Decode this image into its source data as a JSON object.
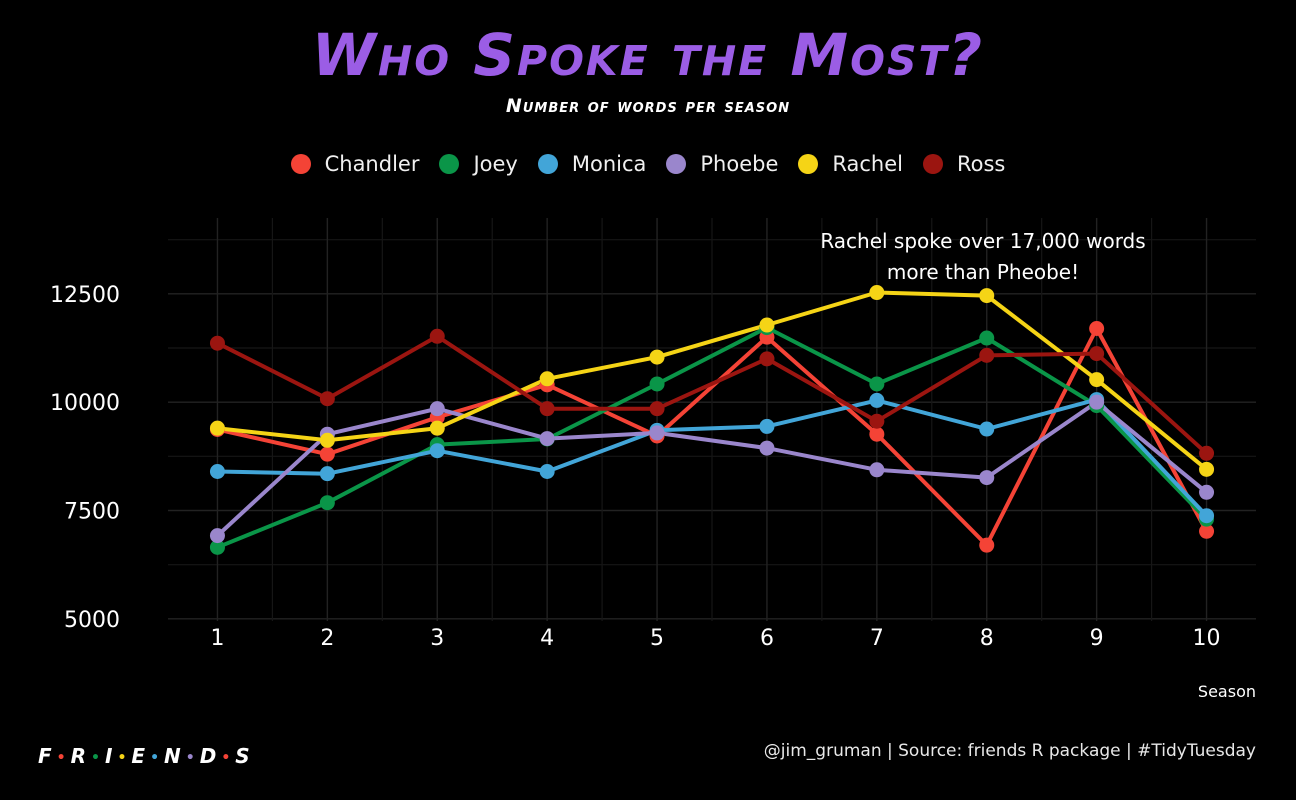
{
  "colors": {
    "background": "#000000",
    "grid": "#222222",
    "text": "#ffffff",
    "title": "#9b5de5"
  },
  "logo_text": [
    "F",
    "R",
    "I",
    "E",
    "N",
    "D",
    "S"
  ],
  "caption": "@jim_gruman | Source: friends R package | #TidyTuesday",
  "chart_data": {
    "type": "line",
    "title": "Who Spoke the Most?",
    "subtitle": "Number of words per season",
    "xlabel": "Season",
    "ylabel": "",
    "x": [
      1,
      2,
      3,
      4,
      5,
      6,
      7,
      8,
      9,
      10
    ],
    "x_tick_labels": [
      "1",
      "2",
      "3",
      "4",
      "5",
      "6",
      "7",
      "8",
      "9",
      "10"
    ],
    "y_ticks": [
      5000,
      7500,
      10000,
      12500
    ],
    "y_tick_labels": [
      "5000",
      "7500",
      "10000",
      "12500"
    ],
    "xlim": [
      0.55,
      10.45
    ],
    "ylim": [
      4950,
      14250
    ],
    "grid": true,
    "legend_position": "top",
    "annotation": {
      "lines": [
        "Rachel spoke over 17,000 words",
        "more than Pheobe!"
      ],
      "x": 8,
      "y": 13580
    },
    "series": [
      {
        "name": "Chandler",
        "color": "#f44336",
        "values": [
          9370,
          8800,
          9650,
          10400,
          9220,
          11500,
          9260,
          6700,
          11700,
          7020
        ]
      },
      {
        "name": "Joey",
        "color": "#0a9548",
        "values": [
          6650,
          7680,
          9020,
          9150,
          10420,
          11720,
          10420,
          11480,
          9920,
          7300
        ]
      },
      {
        "name": "Monica",
        "color": "#42a5d8",
        "values": [
          8400,
          8350,
          8880,
          8400,
          9350,
          9440,
          10040,
          9380,
          10060,
          7380
        ]
      },
      {
        "name": "Phoebe",
        "color": "#9a86cc",
        "values": [
          6920,
          9260,
          9850,
          9160,
          9290,
          8940,
          8440,
          8260,
          10000,
          7920
        ]
      },
      {
        "name": "Rachel",
        "color": "#f5d416",
        "values": [
          9400,
          9120,
          9400,
          10540,
          11040,
          11780,
          12530,
          12460,
          10520,
          8450
        ]
      },
      {
        "name": "Ross",
        "color": "#9b1510",
        "values": [
          11360,
          10080,
          11520,
          9850,
          9850,
          11000,
          9560,
          11080,
          11120,
          8820
        ]
      }
    ]
  }
}
